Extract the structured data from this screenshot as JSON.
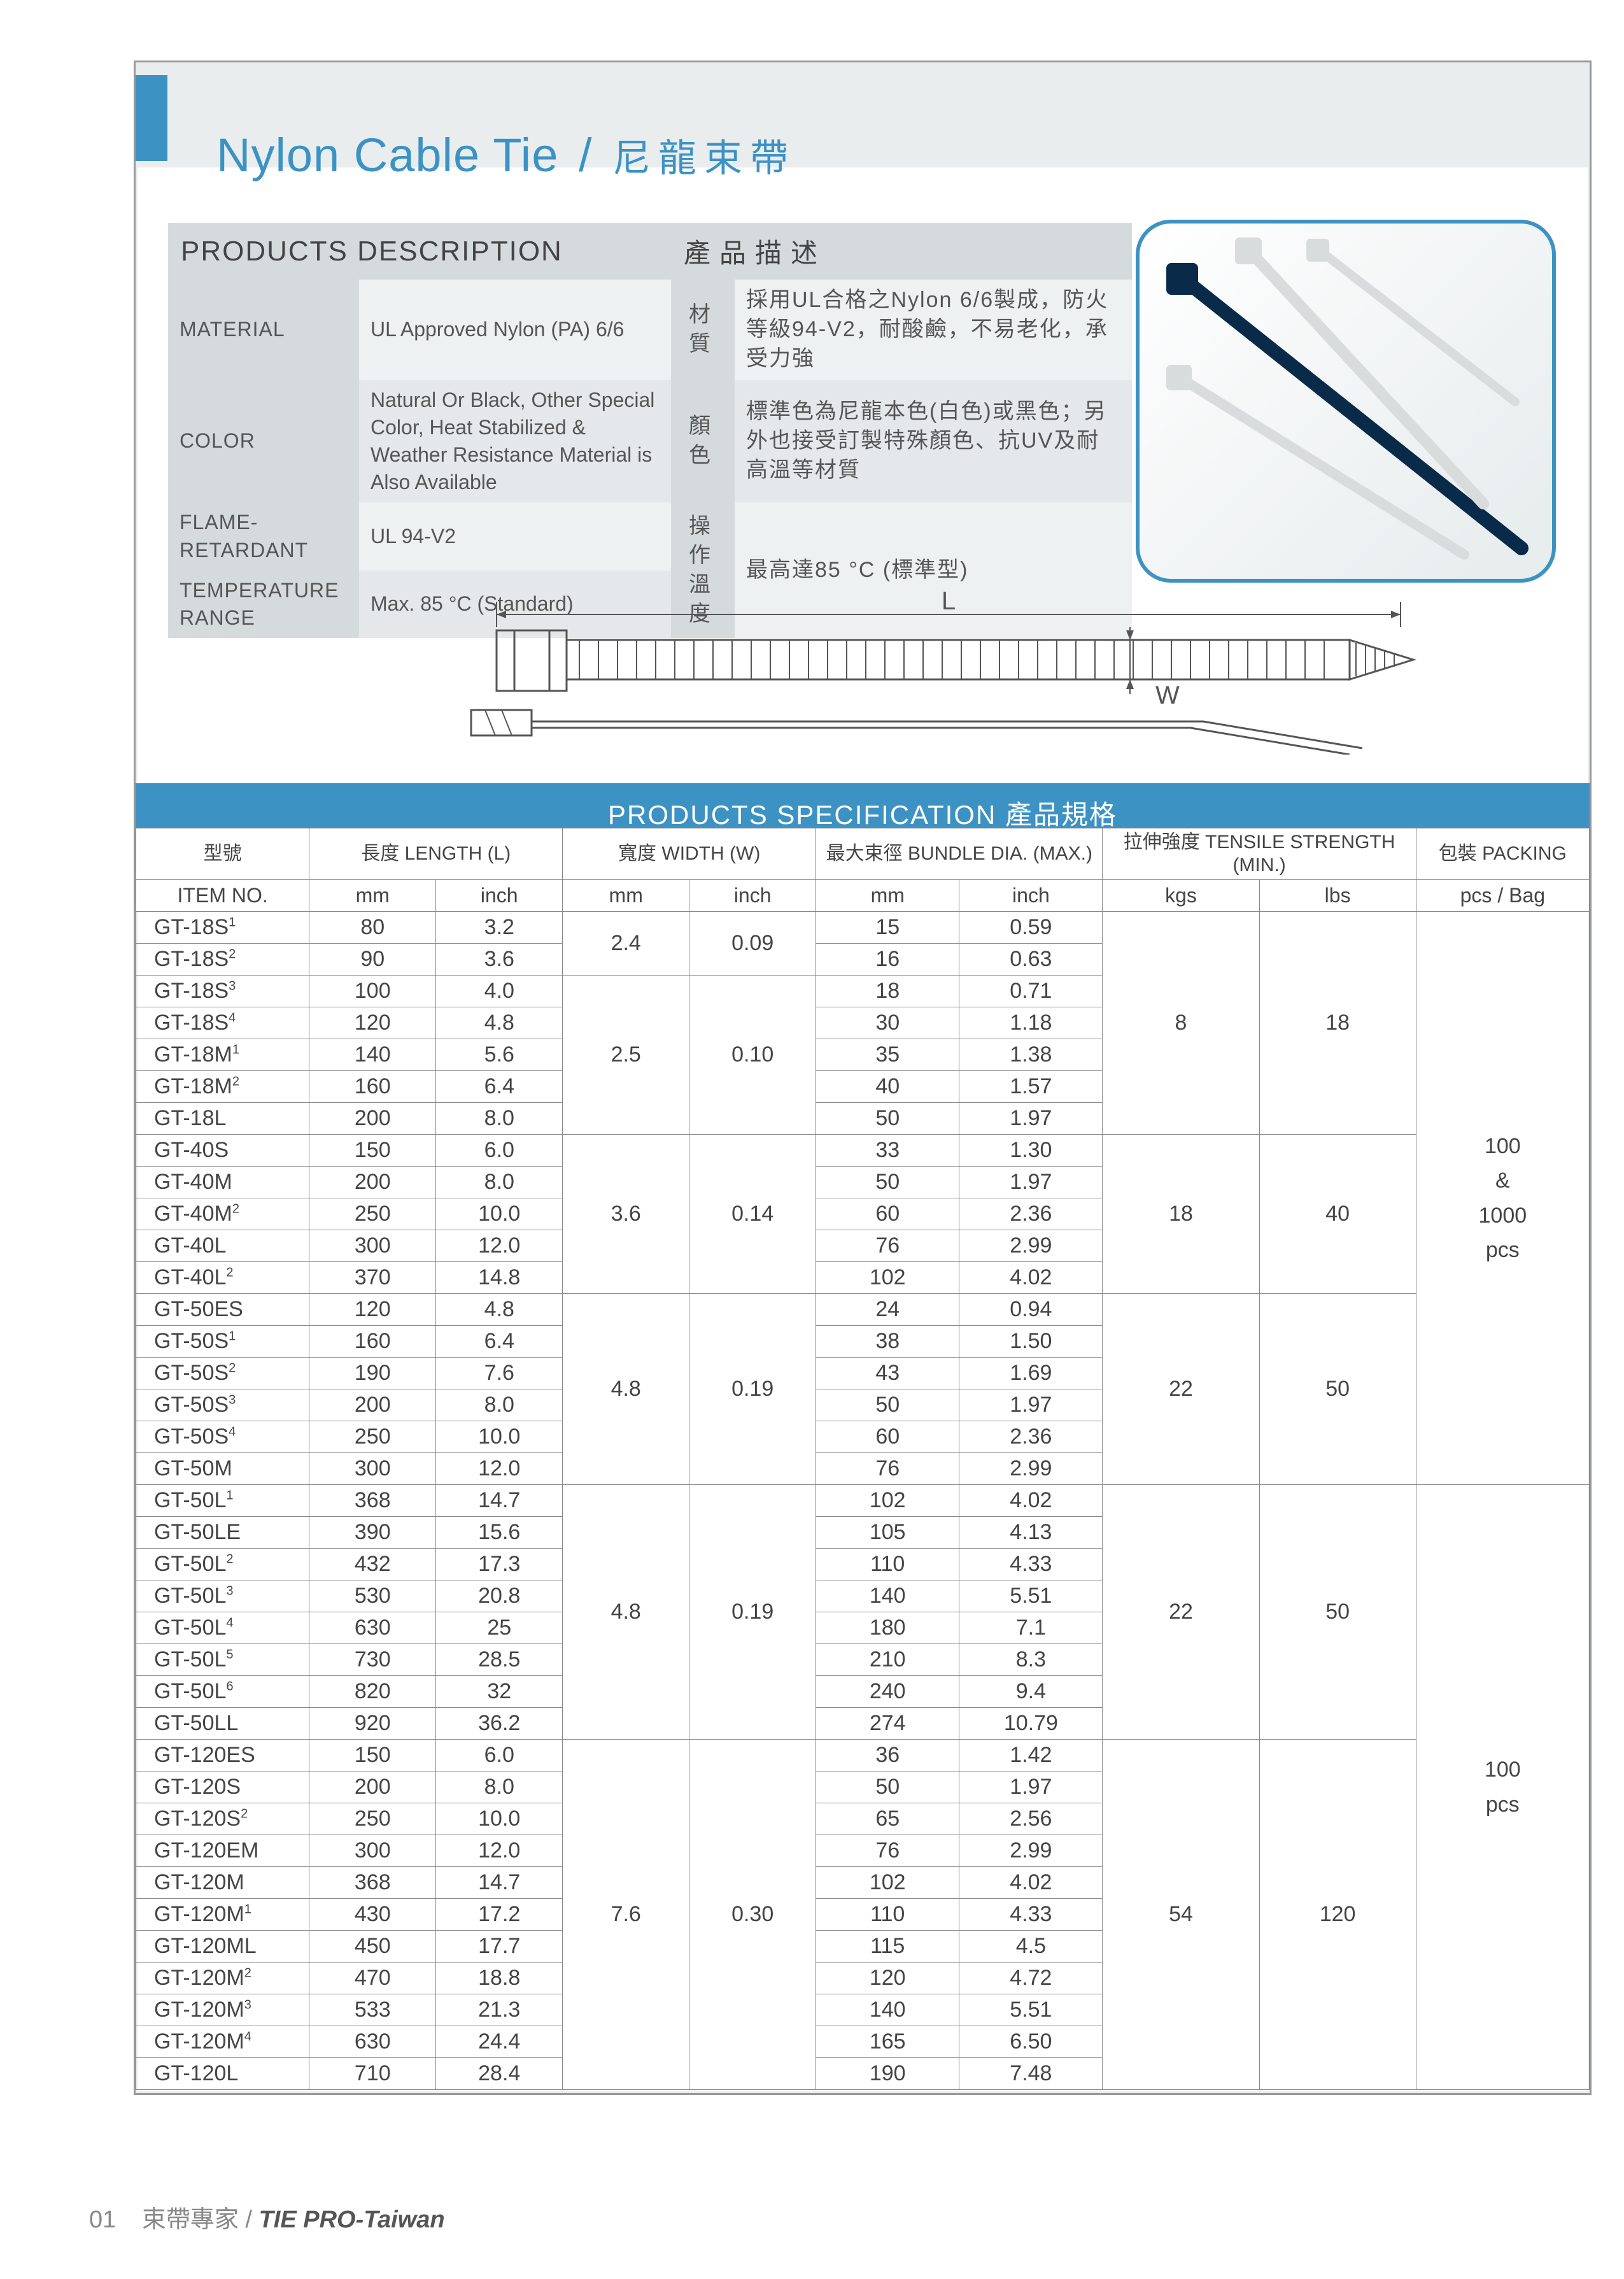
{
  "colors": {
    "accent": "#3d92c4",
    "grey_bg": "#e9edee",
    "grey_head": "#d5dbdd",
    "border": "#888888",
    "text": "#444444"
  },
  "title": {
    "en": "Nylon Cable Tie",
    "sep": "/",
    "zh": "尼龍束帶"
  },
  "desc_header": {
    "en": "PRODUCTS DESCRIPTION",
    "zh": "產品描述"
  },
  "desc_rows": [
    {
      "label_en": "MATERIAL",
      "val_en": "UL Approved Nylon (PA) 6/6",
      "label_zh": "材 質",
      "val_zh": "採用UL合格之Nylon 6/6製成，防火等級94-V2，耐酸鹼，不易老化，承受力強"
    },
    {
      "label_en": "COLOR",
      "val_en": "Natural Or Black, Other Special Color, Heat Stabilized & Weather Resistance Material is Also Available",
      "label_zh": "顏 色",
      "val_zh": "標準色為尼龍本色(白色)或黑色；另外也接受訂製特殊顏色、抗UV及耐高溫等材質"
    },
    {
      "label_en": "FLAME-RETARDANT",
      "val_en": "UL 94-V2",
      "label_zh": "操 作 溫 度",
      "val_zh": "最高達85 °C (標準型)"
    },
    {
      "label_en": "TEMPERATURE RANGE",
      "val_en": "Max. 85 °C (Standard)",
      "label_zh": "",
      "val_zh": ""
    }
  ],
  "desc_en": [
    {
      "label": "MATERIAL",
      "val": "UL Approved Nylon (PA) 6/6"
    },
    {
      "label": "COLOR",
      "val": "Natural Or Black, Other Special Color, Heat Stabilized & Weather Resistance Material is Also Available"
    },
    {
      "label": "FLAME-RETARDANT",
      "val": "UL 94-V2"
    },
    {
      "label": "TEMPERATURE RANGE",
      "val": "Max. 85 °C (Standard)"
    }
  ],
  "desc_zh": [
    {
      "label": "材 質",
      "val": "採用UL合格之Nylon 6/6製成，防火等級94-V2，耐酸鹼，不易老化，承受力強"
    },
    {
      "label": "顏 色",
      "val": "標準色為尼龍本色(白色)或黑色；另外也接受訂製特殊顏色、抗UV及耐高溫等材質"
    },
    {
      "label": "操 作溫 度",
      "val": "最高達85 °C (標準型)"
    }
  ],
  "diagram_labels": {
    "L": "L",
    "W": "W"
  },
  "spec_title": "PRODUCTS SPECIFICATION  產品規格",
  "spec_headers": {
    "item_zh": "型號",
    "item_en": "ITEM NO.",
    "len": "長度 LENGTH (L)",
    "wid": "寬度 WIDTH (W)",
    "bundle": "最大束徑 BUNDLE DIA. (MAX.)",
    "tensile": "拉伸強度 TENSILE STRENGTH (MIN.)",
    "pack": "包裝 PACKING",
    "mm": "mm",
    "inch": "inch",
    "kgs": "kgs",
    "lbs": "lbs",
    "pcs": "pcs / Bag"
  },
  "width_groups": [
    {
      "mm": "2.4",
      "inch": "0.09",
      "span": 2
    },
    {
      "mm": "2.5",
      "inch": "0.10",
      "span": 5
    },
    {
      "mm": "3.6",
      "inch": "0.14",
      "span": 5
    },
    {
      "mm": "4.8",
      "inch": "0.19",
      "span": 6
    },
    {
      "mm": "4.8",
      "inch": "0.19",
      "span": 8
    },
    {
      "mm": "7.6",
      "inch": "0.30",
      "span": 11
    }
  ],
  "tensile_groups": [
    {
      "kgs": "8",
      "lbs": "18",
      "span": 7
    },
    {
      "kgs": "18",
      "lbs": "40",
      "span": 5
    },
    {
      "kgs": "22",
      "lbs": "50",
      "span": 6
    },
    {
      "kgs": "22",
      "lbs": "50",
      "span": 8
    },
    {
      "kgs": "54",
      "lbs": "120",
      "span": 11
    }
  ],
  "pack_groups": [
    {
      "text": "100\n&\n1000\npcs",
      "span": 18
    },
    {
      "text": "100\npcs",
      "span": 19
    }
  ],
  "rows": [
    {
      "item": "GT-18S",
      "sup": "1",
      "lmm": "80",
      "lin": "3.2",
      "bmm": "15",
      "bin": "0.59"
    },
    {
      "item": "GT-18S",
      "sup": "2",
      "lmm": "90",
      "lin": "3.6",
      "bmm": "16",
      "bin": "0.63"
    },
    {
      "item": "GT-18S",
      "sup": "3",
      "lmm": "100",
      "lin": "4.0",
      "bmm": "18",
      "bin": "0.71"
    },
    {
      "item": "GT-18S",
      "sup": "4",
      "lmm": "120",
      "lin": "4.8",
      "bmm": "30",
      "bin": "1.18"
    },
    {
      "item": "GT-18M",
      "sup": "1",
      "lmm": "140",
      "lin": "5.6",
      "bmm": "35",
      "bin": "1.38"
    },
    {
      "item": "GT-18M",
      "sup": "2",
      "lmm": "160",
      "lin": "6.4",
      "bmm": "40",
      "bin": "1.57"
    },
    {
      "item": "GT-18L",
      "sup": "",
      "lmm": "200",
      "lin": "8.0",
      "bmm": "50",
      "bin": "1.97"
    },
    {
      "item": "GT-40S",
      "sup": "",
      "lmm": "150",
      "lin": "6.0",
      "bmm": "33",
      "bin": "1.30"
    },
    {
      "item": "GT-40M",
      "sup": "",
      "lmm": "200",
      "lin": "8.0",
      "bmm": "50",
      "bin": "1.97"
    },
    {
      "item": "GT-40M",
      "sup": "2",
      "lmm": "250",
      "lin": "10.0",
      "bmm": "60",
      "bin": "2.36"
    },
    {
      "item": "GT-40L",
      "sup": "",
      "lmm": "300",
      "lin": "12.0",
      "bmm": "76",
      "bin": "2.99"
    },
    {
      "item": "GT-40L",
      "sup": "2",
      "lmm": "370",
      "lin": "14.8",
      "bmm": "102",
      "bin": "4.02"
    },
    {
      "item": "GT-50ES",
      "sup": "",
      "lmm": "120",
      "lin": "4.8",
      "bmm": "24",
      "bin": "0.94"
    },
    {
      "item": "GT-50S",
      "sup": "1",
      "lmm": "160",
      "lin": "6.4",
      "bmm": "38",
      "bin": "1.50"
    },
    {
      "item": "GT-50S",
      "sup": "2",
      "lmm": "190",
      "lin": "7.6",
      "bmm": "43",
      "bin": "1.69"
    },
    {
      "item": "GT-50S",
      "sup": "3",
      "lmm": "200",
      "lin": "8.0",
      "bmm": "50",
      "bin": "1.97"
    },
    {
      "item": "GT-50S",
      "sup": "4",
      "lmm": "250",
      "lin": "10.0",
      "bmm": "60",
      "bin": "2.36"
    },
    {
      "item": "GT-50M",
      "sup": "",
      "lmm": "300",
      "lin": "12.0",
      "bmm": "76",
      "bin": "2.99"
    },
    {
      "item": "GT-50L",
      "sup": "1",
      "lmm": "368",
      "lin": "14.7",
      "bmm": "102",
      "bin": "4.02"
    },
    {
      "item": "GT-50LE",
      "sup": "",
      "lmm": "390",
      "lin": "15.6",
      "bmm": "105",
      "bin": "4.13"
    },
    {
      "item": "GT-50L",
      "sup": "2",
      "lmm": "432",
      "lin": "17.3",
      "bmm": "110",
      "bin": "4.33"
    },
    {
      "item": "GT-50L",
      "sup": "3",
      "lmm": "530",
      "lin": "20.8",
      "bmm": "140",
      "bin": "5.51"
    },
    {
      "item": "GT-50L",
      "sup": "4",
      "lmm": "630",
      "lin": "25",
      "bmm": "180",
      "bin": "7.1"
    },
    {
      "item": "GT-50L",
      "sup": "5",
      "lmm": "730",
      "lin": "28.5",
      "bmm": "210",
      "bin": "8.3"
    },
    {
      "item": "GT-50L",
      "sup": "6",
      "lmm": "820",
      "lin": "32",
      "bmm": "240",
      "bin": "9.4"
    },
    {
      "item": "GT-50LL",
      "sup": "",
      "lmm": "920",
      "lin": "36.2",
      "bmm": "274",
      "bin": "10.79"
    },
    {
      "item": "GT-120ES",
      "sup": "",
      "lmm": "150",
      "lin": "6.0",
      "bmm": "36",
      "bin": "1.42"
    },
    {
      "item": "GT-120S",
      "sup": "",
      "lmm": "200",
      "lin": "8.0",
      "bmm": "50",
      "bin": "1.97"
    },
    {
      "item": "GT-120S",
      "sup": "2",
      "lmm": "250",
      "lin": "10.0",
      "bmm": "65",
      "bin": "2.56"
    },
    {
      "item": "GT-120EM",
      "sup": "",
      "lmm": "300",
      "lin": "12.0",
      "bmm": "76",
      "bin": "2.99"
    },
    {
      "item": "GT-120M",
      "sup": "",
      "lmm": "368",
      "lin": "14.7",
      "bmm": "102",
      "bin": "4.02"
    },
    {
      "item": "GT-120M",
      "sup": "1",
      "lmm": "430",
      "lin": "17.2",
      "bmm": "110",
      "bin": "4.33"
    },
    {
      "item": "GT-120ML",
      "sup": "",
      "lmm": "450",
      "lin": "17.7",
      "bmm": "115",
      "bin": "4.5"
    },
    {
      "item": "GT-120M",
      "sup": "2",
      "lmm": "470",
      "lin": "18.8",
      "bmm": "120",
      "bin": "4.72"
    },
    {
      "item": "GT-120M",
      "sup": "3",
      "lmm": "533",
      "lin": "21.3",
      "bmm": "140",
      "bin": "5.51"
    },
    {
      "item": "GT-120M",
      "sup": "4",
      "lmm": "630",
      "lin": "24.4",
      "bmm": "165",
      "bin": "6.50"
    },
    {
      "item": "GT-120L",
      "sup": "",
      "lmm": "710",
      "lin": "28.4",
      "bmm": "190",
      "bin": "7.48"
    }
  ],
  "footer": {
    "page": "01",
    "zh": "束帶專家",
    "sep": "/",
    "brand": "TIE PRO-Taiwan"
  }
}
